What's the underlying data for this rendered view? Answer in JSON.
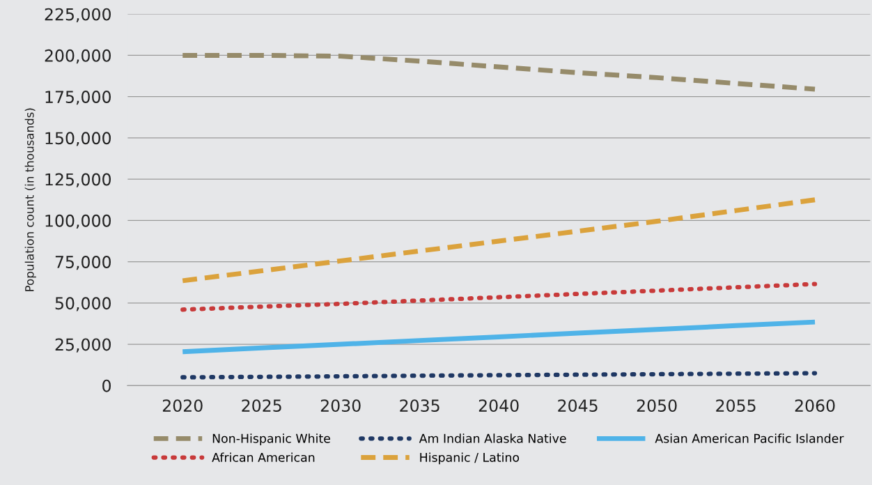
{
  "chart_data": {
    "type": "line",
    "ylabel": "Population count (in thousands)",
    "x": [
      2020,
      2025,
      2030,
      2035,
      2040,
      2045,
      2050,
      2055,
      2060
    ],
    "xlim": [
      2016.5,
      2063.5
    ],
    "xticks": [
      2020,
      2025,
      2030,
      2035,
      2040,
      2045,
      2050,
      2055,
      2060
    ],
    "ylim": [
      0,
      225000
    ],
    "yticks": [
      {
        "value": 0,
        "label": "0"
      },
      {
        "value": 25000,
        "label": "25,000"
      },
      {
        "value": 50000,
        "label": "50,000"
      },
      {
        "value": 75000,
        "label": "75,000"
      },
      {
        "value": 100000,
        "label": "100,000"
      },
      {
        "value": 125000,
        "label": "125,000"
      },
      {
        "value": 150000,
        "label": "150,000"
      },
      {
        "value": 175000,
        "label": "175,000"
      },
      {
        "value": 200000,
        "label": "200,000"
      },
      {
        "value": 225000,
        "label": "225,000"
      }
    ],
    "grid": "y",
    "legend": "bottom",
    "marker": "none",
    "series": [
      {
        "name": "Non-Hispanic White",
        "color": "#968b6a",
        "line_style": "dashed",
        "values": [
          200000,
          200000,
          199500,
          196500,
          193000,
          189500,
          186500,
          183000,
          179500
        ]
      },
      {
        "name": "Am Indian Alaska Native",
        "color": "#1f3864",
        "line_style": "dotted",
        "values": [
          5000,
          5300,
          5600,
          6000,
          6300,
          6600,
          6900,
          7200,
          7500
        ]
      },
      {
        "name": "Asian American Pacific Islander",
        "color": "#4fb3e8",
        "line_style": "solid",
        "values": [
          20500,
          22800,
          25000,
          27300,
          29500,
          31800,
          34000,
          36300,
          38500
        ]
      },
      {
        "name": "African American",
        "color": "#c83a3a",
        "line_style": "dotted",
        "values": [
          46000,
          47800,
          49500,
          51500,
          53500,
          55500,
          57500,
          59500,
          61500
        ]
      },
      {
        "name": "Hispanic / Latino",
        "color": "#dba23c",
        "line_style": "dashed",
        "values": [
          63500,
          69500,
          75500,
          81500,
          87500,
          93500,
          99500,
          106000,
          112500
        ]
      }
    ]
  }
}
